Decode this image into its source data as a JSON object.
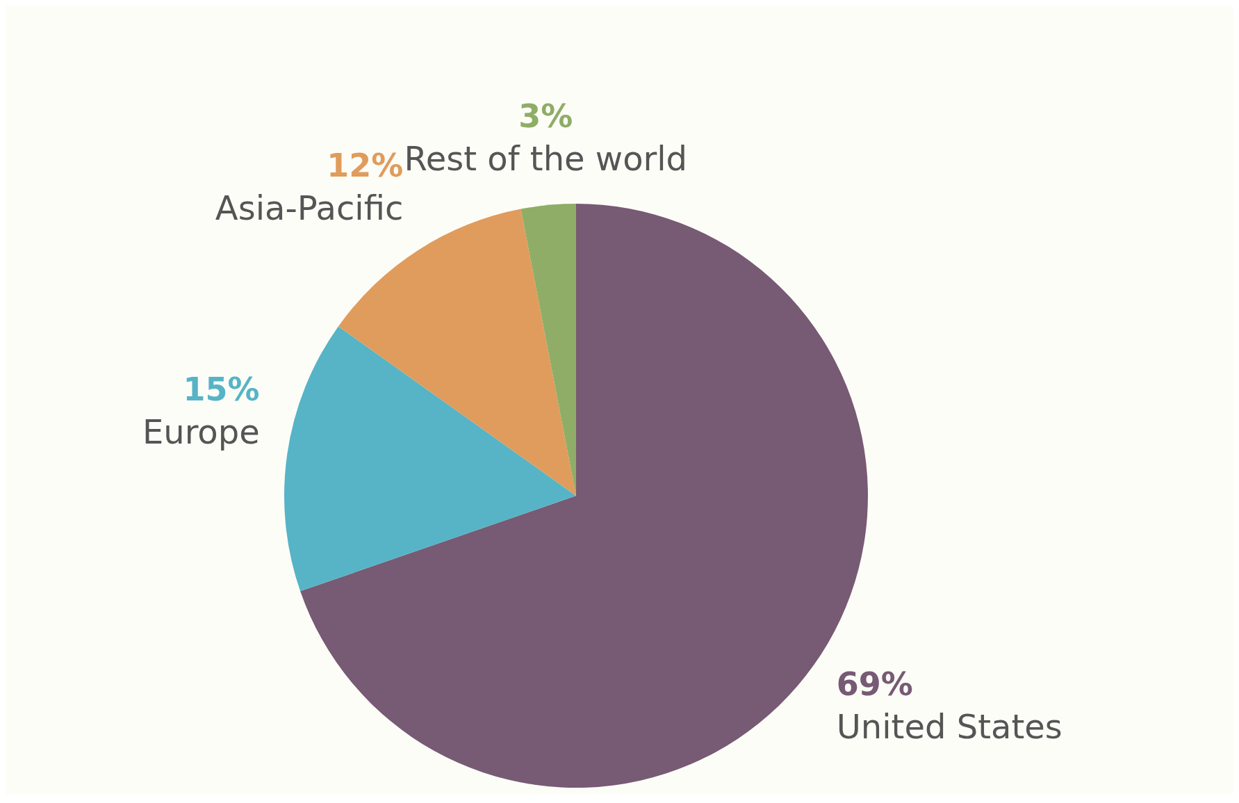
{
  "chart_data": {
    "type": "pie",
    "categories": [
      "United States",
      "Europe",
      "Asia-Pacific",
      "Rest of the world"
    ],
    "values": [
      69,
      15,
      12,
      3
    ],
    "colors": [
      "#775a74",
      "#56b4c6",
      "#e09c5c",
      "#8fad66"
    ],
    "value_labels": [
      "69%",
      "15%",
      "12%",
      "3%"
    ]
  }
}
